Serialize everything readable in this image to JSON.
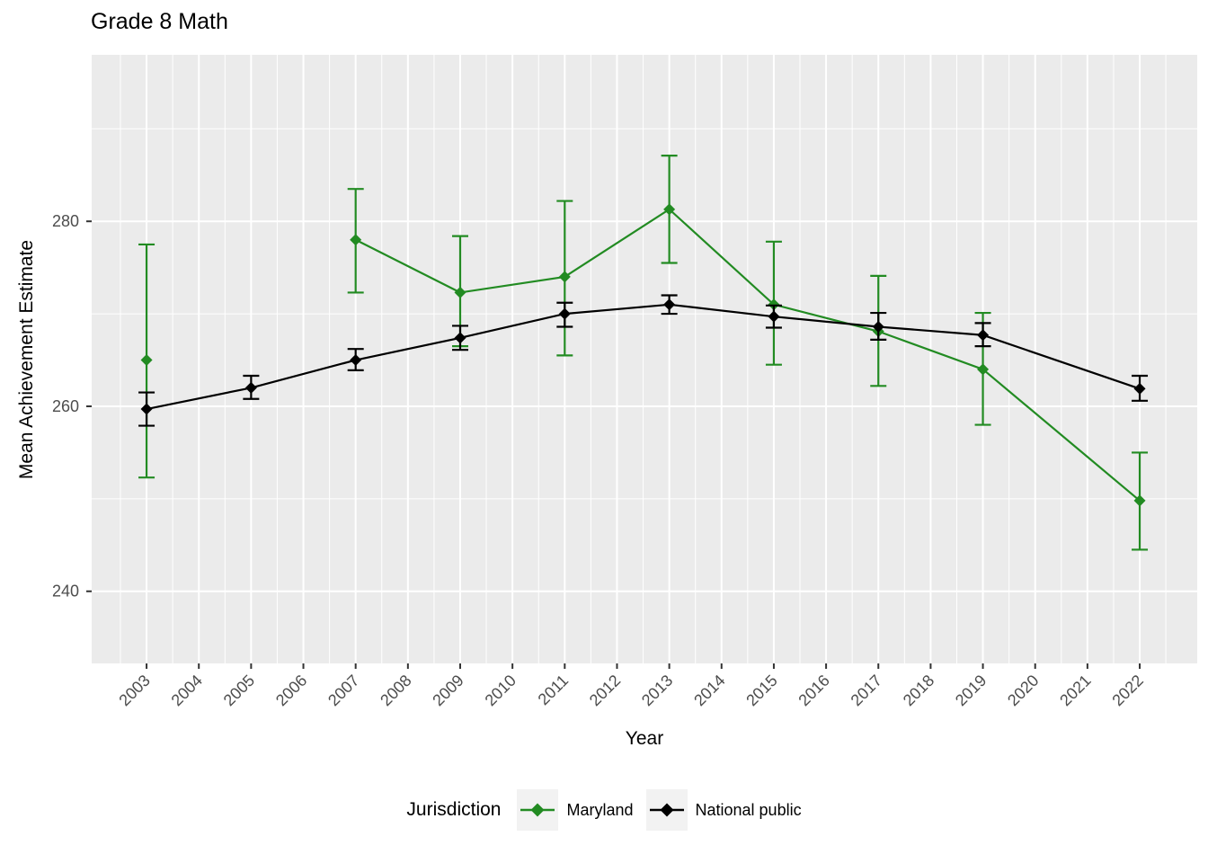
{
  "title": "Grade 8 Math",
  "axes": {
    "x_label": "Year",
    "y_label": "Mean Achievement Estimate"
  },
  "legend": {
    "title": "Jurisdiction",
    "items": [
      {
        "label": "Maryland",
        "color": "#228B22"
      },
      {
        "label": "National public",
        "color": "#000000"
      }
    ]
  },
  "style": {
    "panel_background": "#EBEBEB",
    "grid_color": "#FFFFFF",
    "axis_text_color": "#4D4D4D",
    "tick_mark_color": "#333333",
    "legend_key_background": "#F2F2F2"
  },
  "chart_data": {
    "type": "line",
    "title": "Grade 8 Math",
    "xlabel": "Year",
    "ylabel": "Mean Achievement Estimate",
    "grid": true,
    "legend_position": "bottom",
    "error_bars": true,
    "x_ticks": [
      2003,
      2004,
      2005,
      2006,
      2007,
      2008,
      2009,
      2010,
      2011,
      2012,
      2013,
      2014,
      2015,
      2016,
      2017,
      2018,
      2019,
      2020,
      2021,
      2022
    ],
    "y_ticks": [
      240,
      260,
      280
    ],
    "y_minor": [
      250,
      270,
      290
    ],
    "xlim": [
      2001.95,
      2023.1
    ],
    "ylim": [
      232.2,
      298.0
    ],
    "series": [
      {
        "name": "Maryland",
        "color": "#228B22",
        "points": [
          {
            "year": 2003,
            "value": 265.0,
            "lo": 252.3,
            "hi": 277.5,
            "line": false
          },
          {
            "year": 2007,
            "value": 278.0,
            "lo": 272.3,
            "hi": 283.5
          },
          {
            "year": 2009,
            "value": 272.3,
            "lo": 266.5,
            "hi": 278.4
          },
          {
            "year": 2011,
            "value": 274.0,
            "lo": 265.5,
            "hi": 282.2
          },
          {
            "year": 2013,
            "value": 281.3,
            "lo": 275.5,
            "hi": 287.1
          },
          {
            "year": 2015,
            "value": 271.0,
            "lo": 264.5,
            "hi": 277.8
          },
          {
            "year": 2017,
            "value": 268.1,
            "lo": 262.2,
            "hi": 274.1
          },
          {
            "year": 2019,
            "value": 264.0,
            "lo": 258.0,
            "hi": 270.1
          },
          {
            "year": 2022,
            "value": 249.8,
            "lo": 244.5,
            "hi": 255.0
          }
        ]
      },
      {
        "name": "National public",
        "color": "#000000",
        "points": [
          {
            "year": 2003,
            "value": 259.7,
            "lo": 257.9,
            "hi": 261.5
          },
          {
            "year": 2005,
            "value": 262.0,
            "lo": 260.8,
            "hi": 263.3
          },
          {
            "year": 2007,
            "value": 265.0,
            "lo": 263.9,
            "hi": 266.2
          },
          {
            "year": 2009,
            "value": 267.4,
            "lo": 266.1,
            "hi": 268.7
          },
          {
            "year": 2011,
            "value": 270.0,
            "lo": 268.6,
            "hi": 271.2
          },
          {
            "year": 2013,
            "value": 271.0,
            "lo": 270.0,
            "hi": 272.0
          },
          {
            "year": 2015,
            "value": 269.7,
            "lo": 268.5,
            "hi": 270.9
          },
          {
            "year": 2017,
            "value": 268.6,
            "lo": 267.2,
            "hi": 270.1
          },
          {
            "year": 2019,
            "value": 267.7,
            "lo": 266.5,
            "hi": 269.0
          },
          {
            "year": 2022,
            "value": 261.9,
            "lo": 260.6,
            "hi": 263.3
          }
        ]
      }
    ]
  }
}
